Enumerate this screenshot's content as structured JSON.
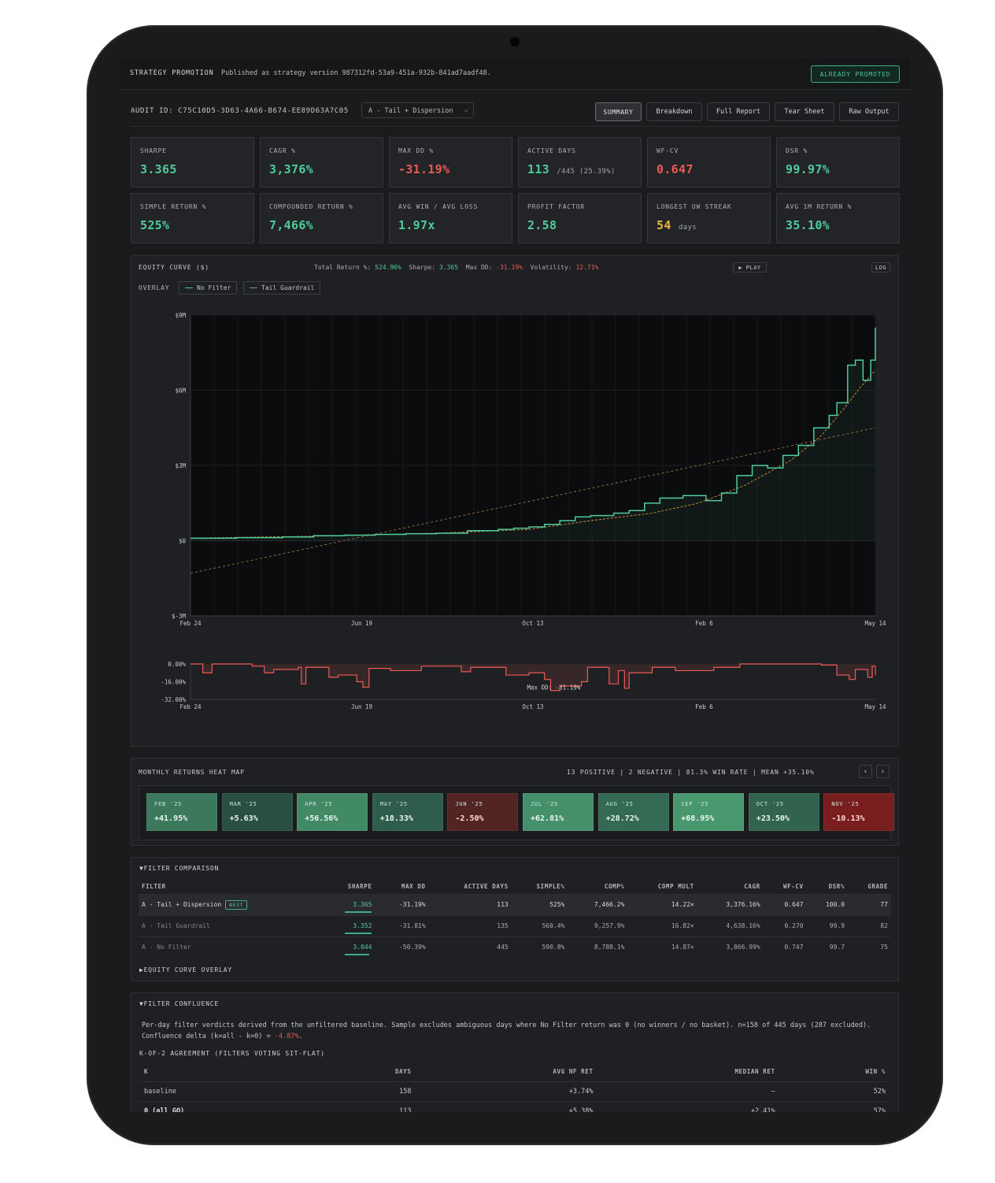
{
  "header": {
    "title": "STRATEGY PROMOTION",
    "published": "Published as strategy version 987312fd-53a9-451a-932b-841ad7aadf48.",
    "promoted_label": "ALREADY PROMOTED"
  },
  "audit": {
    "id_label": "AUDIT ID: C75C10D5-3D63-4A66-B674-EE89D63A7C05",
    "variant": "A - Tail + Dispersion",
    "tabs": [
      "SUMMARY",
      "Breakdown",
      "Full Report",
      "Tear Sheet",
      "Raw Output"
    ]
  },
  "metrics": [
    {
      "label": "SHARPE",
      "value": "3.365",
      "sub": ""
    },
    {
      "label": "CAGR %",
      "value": "3,376%",
      "sub": ""
    },
    {
      "label": "MAX DD %",
      "value": "-31.19%",
      "sub": ""
    },
    {
      "label": "ACTIVE DAYS",
      "value": "113",
      "sub": "/445 (25.39%)"
    },
    {
      "label": "WF-CV",
      "value": "0.647",
      "sub": ""
    },
    {
      "label": "DSR %",
      "value": "99.97%",
      "sub": ""
    },
    {
      "label": "SIMPLE RETURN %",
      "value": "525%",
      "sub": ""
    },
    {
      "label": "COMPOUNDED RETURN %",
      "value": "7,466%",
      "sub": ""
    },
    {
      "label": "AVG WIN / AVG LOSS",
      "value": "1.97x",
      "sub": ""
    },
    {
      "label": "PROFIT FACTOR",
      "value": "2.58",
      "sub": ""
    },
    {
      "label": "LONGEST UW STREAK",
      "value": "54",
      "sub": "days"
    },
    {
      "label": "AVG 1M RETURN %",
      "value": "35.10%",
      "sub": ""
    }
  ],
  "equity": {
    "title": "EQUITY CURVE ($)",
    "stats": {
      "total_label": "Total Return %:",
      "total": "524.96%",
      "sharpe_label": "Sharpe:",
      "sharpe": "3.365",
      "maxdd_label": "Max DD:",
      "maxdd": "-31.19%",
      "vol_label": "Volatility:",
      "vol": "12.71%"
    },
    "play_label": "▶ PLAY",
    "log_label": "LOG",
    "overlay_label": "OVERLAY",
    "overlay_chips": [
      "No Filter",
      "Tail Guardrail"
    ],
    "drawdown_annotation": "Max DD: -31.19%"
  },
  "chart_data": [
    {
      "type": "line",
      "title": "EQUITY CURVE ($)",
      "x_ticks": [
        "Feb 24",
        "Jun 19",
        "Oct 13",
        "Feb 6",
        "May 14"
      ],
      "y_ticks": [
        "$9M",
        "$6M",
        "$3M",
        "$0",
        "$-3M"
      ],
      "ylim": [
        -3,
        9
      ],
      "y_unit": "$M",
      "x_index_range": [
        0,
        445
      ],
      "series": [
        {
          "name": "",
          "color": "#4fcb9c",
          "points": [
            [
              0,
              0.1
            ],
            [
              30,
              0.12
            ],
            [
              60,
              0.15
            ],
            [
              80,
              0.2
            ],
            [
              100,
              0.22
            ],
            [
              120,
              0.25
            ],
            [
              140,
              0.28
            ],
            [
              160,
              0.3
            ],
            [
              180,
              0.4
            ],
            [
              200,
              0.45
            ],
            [
              210,
              0.5
            ],
            [
              220,
              0.55
            ],
            [
              230,
              0.65
            ],
            [
              240,
              0.8
            ],
            [
              250,
              0.95
            ],
            [
              260,
              1.0
            ],
            [
              275,
              1.1
            ],
            [
              285,
              1.2
            ],
            [
              295,
              1.5
            ],
            [
              305,
              1.7
            ],
            [
              320,
              1.8
            ],
            [
              335,
              1.6
            ],
            [
              345,
              1.9
            ],
            [
              355,
              2.6
            ],
            [
              365,
              3.0
            ],
            [
              375,
              2.9
            ],
            [
              385,
              3.4
            ],
            [
              395,
              3.8
            ],
            [
              405,
              4.5
            ],
            [
              415,
              5.0
            ],
            [
              420,
              5.5
            ],
            [
              427,
              7.0
            ],
            [
              432,
              7.2
            ],
            [
              437,
              6.4
            ],
            [
              442,
              7.2
            ],
            [
              445,
              8.5
            ]
          ]
        },
        {
          "name": "",
          "color": "#c9883a",
          "points": [
            [
              0,
              0.1
            ],
            [
              80,
              0.18
            ],
            [
              160,
              0.3
            ],
            [
              220,
              0.45
            ],
            [
              260,
              0.8
            ],
            [
              300,
              1.1
            ],
            [
              330,
              1.5
            ],
            [
              360,
              2.2
            ],
            [
              390,
              3.2
            ],
            [
              410,
              4.2
            ],
            [
              425,
              5.3
            ],
            [
              435,
              6.1
            ],
            [
              445,
              6.8
            ]
          ]
        },
        {
          "name": "",
          "color": "#8a6a3a",
          "points": [
            [
              0,
              -1.3
            ],
            [
              445,
              4.5
            ]
          ]
        }
      ]
    },
    {
      "type": "area",
      "title": "",
      "y_ticks": [
        "0.00%",
        "-16.00%",
        "-32.00%"
      ],
      "ylim": [
        -32,
        0
      ],
      "x_ticks": [
        "Feb 24",
        "Jun 19",
        "Oct 13",
        "Feb 6",
        "May 14"
      ],
      "series": [
        {
          "name": "",
          "color": "#ec5a55",
          "points": [
            [
              0,
              0
            ],
            [
              8,
              -8
            ],
            [
              14,
              0
            ],
            [
              40,
              -2
            ],
            [
              48,
              -8
            ],
            [
              54,
              -5
            ],
            [
              70,
              -3
            ],
            [
              72,
              -18
            ],
            [
              75,
              -3
            ],
            [
              90,
              -12
            ],
            [
              96,
              -10
            ],
            [
              108,
              -16
            ],
            [
              112,
              -21
            ],
            [
              116,
              -4
            ],
            [
              130,
              -6
            ],
            [
              150,
              -2
            ],
            [
              176,
              -7
            ],
            [
              182,
              -3
            ],
            [
              205,
              -10
            ],
            [
              220,
              -8
            ],
            [
              230,
              -14
            ],
            [
              234,
              -24
            ],
            [
              240,
              -20
            ],
            [
              254,
              -16
            ],
            [
              258,
              -3
            ],
            [
              272,
              -18
            ],
            [
              278,
              -6
            ],
            [
              282,
              -22
            ],
            [
              285,
              -8
            ],
            [
              300,
              -3
            ],
            [
              315,
              -6
            ],
            [
              340,
              -3
            ],
            [
              357,
              0
            ],
            [
              410,
              -1
            ],
            [
              420,
              -10
            ],
            [
              428,
              -14
            ],
            [
              432,
              -5
            ],
            [
              440,
              -12
            ],
            [
              443,
              -2
            ],
            [
              445,
              -10
            ]
          ]
        }
      ]
    }
  ],
  "heatmap": {
    "title": "MONTHLY RETURNS HEAT MAP",
    "stats": "13 POSITIVE  |  2 NEGATIVE  |  81.3% WIN RATE  |  MEAN +35.10%",
    "months": [
      {
        "label": "FEB '25",
        "value": "+41.95%",
        "ret": 41.95
      },
      {
        "label": "MAR '25",
        "value": "+5.63%",
        "ret": 5.63
      },
      {
        "label": "APR '25",
        "value": "+56.56%",
        "ret": 56.56
      },
      {
        "label": "MAY '25",
        "value": "+18.33%",
        "ret": 18.33
      },
      {
        "label": "JUN '25",
        "value": "-2.50%",
        "ret": -2.5
      },
      {
        "label": "JUL '25",
        "value": "+62.81%",
        "ret": 62.81
      },
      {
        "label": "AUG '25",
        "value": "+28.72%",
        "ret": 28.72
      },
      {
        "label": "SEP '25",
        "value": "+68.95%",
        "ret": 68.95
      },
      {
        "label": "OCT '25",
        "value": "+23.50%",
        "ret": 23.5
      },
      {
        "label": "NOV '25",
        "value": "-10.13%",
        "ret": -10.13
      }
    ]
  },
  "filter_comparison": {
    "title": "▼FILTER COMPARISON",
    "columns": [
      "FILTER",
      "SHARPE",
      "MAX DD",
      "ACTIVE DAYS",
      "SIMPLE%",
      "COMP%",
      "COMP MULT",
      "CAGR",
      "WF-CV",
      "DSR%",
      "GRADE"
    ],
    "best_badge": "BEST",
    "rows": [
      {
        "filter": "A - Tail + Dispersion",
        "sharpe": "3.365",
        "maxdd": "-31.19%",
        "active": "113",
        "simple": "525%",
        "comp": "7,466.2%",
        "mult": "14.22×",
        "cagr": "3,376.16%",
        "wfcv": "0.647",
        "dsr": "100.0",
        "grade": "77",
        "bar": 1.0
      },
      {
        "filter": "A - Tail Guardrail",
        "sharpe": "3.352",
        "maxdd": "-31.81%",
        "active": "135",
        "simple": "560.4%",
        "comp": "9,257.9%",
        "mult": "16.82×",
        "cagr": "4,638.16%",
        "wfcv": "0.270",
        "dsr": "99.9",
        "grade": "82",
        "bar": 0.99
      },
      {
        "filter": "A - No Filter",
        "sharpe": "3.044",
        "maxdd": "-50.39%",
        "active": "445",
        "simple": "590.8%",
        "comp": "8,788.1%",
        "mult": "14.87×",
        "cagr": "3,866.99%",
        "wfcv": "0.747",
        "dsr": "99.7",
        "grade": "75",
        "bar": 0.9
      }
    ],
    "overlay_toggle": "▶EQUITY CURVE OVERLAY"
  },
  "confluence": {
    "title": "▼FILTER CONFLUENCE",
    "para_prefix": "Per-day filter verdicts derived from the unfiltered baseline. Sample excludes ambiguous days where No Filter return was 0 (no winners / no basket). n=158 of 445 days (287 excluded). Confluence delta (k=all - k=0) = ",
    "para_delta": "-4.87%",
    "para_suffix": ".",
    "agreement_title": "K-OF-2 AGREEMENT (FILTERS VOTING SIT-FLAT)",
    "columns": [
      "K",
      "DAYS",
      "AVG NF RET",
      "MEDIAN RET",
      "WIN %"
    ],
    "rows": [
      {
        "k": "baseline",
        "days": "158",
        "avg": "+3.74%",
        "median": "—",
        "win": "52%"
      },
      {
        "k": "0 (all GO)",
        "days": "113",
        "avg": "+5.38%",
        "median": "+2.41%",
        "win": "57%"
      }
    ]
  }
}
